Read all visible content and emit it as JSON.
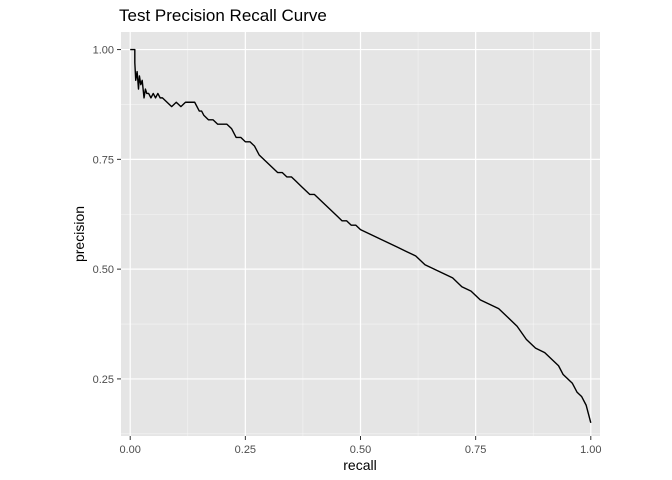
{
  "chart_data": {
    "type": "line",
    "title": "Test Precision Recall Curve",
    "xlabel": "recall",
    "ylabel": "precision",
    "xlim": [
      -0.02,
      1.02
    ],
    "ylim": [
      0.12,
      1.04
    ],
    "x_ticks": [
      0.0,
      0.25,
      0.5,
      0.75,
      1.0
    ],
    "x_tick_labels": [
      "0.00",
      "0.25",
      "0.50",
      "0.75",
      "1.00"
    ],
    "y_ticks": [
      0.25,
      0.5,
      0.75,
      1.0
    ],
    "y_tick_labels": [
      "0.25",
      "0.50",
      "0.75",
      "1.00"
    ],
    "grid": true,
    "legend": "none",
    "colors": {
      "panel_background": "#e5e5e5",
      "grid_major": "#ffffff",
      "line": "#000000",
      "tick_text": "#4d4d4d"
    },
    "series": [
      {
        "x": [
          0.0,
          0.01,
          0.01,
          0.012,
          0.015,
          0.018,
          0.02,
          0.023,
          0.026,
          0.03,
          0.033,
          0.036,
          0.04,
          0.045,
          0.05,
          0.055,
          0.06,
          0.065,
          0.07,
          0.08,
          0.09,
          0.1,
          0.11,
          0.12,
          0.13,
          0.14,
          0.15,
          0.155,
          0.16,
          0.17,
          0.18,
          0.19,
          0.2,
          0.21,
          0.22,
          0.23,
          0.24,
          0.25,
          0.26,
          0.27,
          0.28,
          0.29,
          0.3,
          0.31,
          0.32,
          0.33,
          0.34,
          0.35,
          0.36,
          0.37,
          0.38,
          0.39,
          0.4,
          0.41,
          0.42,
          0.43,
          0.44,
          0.45,
          0.46,
          0.47,
          0.48,
          0.49,
          0.5,
          0.52,
          0.54,
          0.56,
          0.58,
          0.6,
          0.62,
          0.64,
          0.66,
          0.68,
          0.7,
          0.72,
          0.74,
          0.76,
          0.78,
          0.8,
          0.82,
          0.84,
          0.86,
          0.88,
          0.9,
          0.92,
          0.93,
          0.94,
          0.95,
          0.96,
          0.97,
          0.98,
          0.99,
          0.995,
          1.0
        ],
        "y": [
          1.0,
          1.0,
          0.97,
          0.93,
          0.95,
          0.91,
          0.94,
          0.92,
          0.93,
          0.89,
          0.91,
          0.9,
          0.9,
          0.89,
          0.9,
          0.89,
          0.9,
          0.89,
          0.89,
          0.88,
          0.87,
          0.88,
          0.87,
          0.88,
          0.88,
          0.88,
          0.86,
          0.86,
          0.85,
          0.84,
          0.84,
          0.83,
          0.83,
          0.83,
          0.82,
          0.8,
          0.8,
          0.79,
          0.79,
          0.78,
          0.76,
          0.75,
          0.74,
          0.73,
          0.72,
          0.72,
          0.71,
          0.71,
          0.7,
          0.69,
          0.68,
          0.67,
          0.67,
          0.66,
          0.65,
          0.64,
          0.63,
          0.62,
          0.61,
          0.61,
          0.6,
          0.6,
          0.59,
          0.58,
          0.57,
          0.56,
          0.55,
          0.54,
          0.53,
          0.51,
          0.5,
          0.49,
          0.48,
          0.46,
          0.45,
          0.43,
          0.42,
          0.41,
          0.39,
          0.37,
          0.34,
          0.32,
          0.31,
          0.29,
          0.28,
          0.26,
          0.25,
          0.24,
          0.22,
          0.21,
          0.19,
          0.17,
          0.15
        ]
      }
    ]
  }
}
